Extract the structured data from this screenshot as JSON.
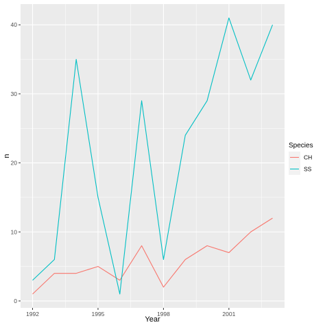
{
  "chart_data": {
    "type": "line",
    "xlabel": "Year",
    "ylabel": "n",
    "x_ticks": [
      1992,
      1995,
      1998,
      2001
    ],
    "y_ticks": [
      0,
      10,
      20,
      30,
      40
    ],
    "xlim": [
      1991.45,
      2003.55
    ],
    "ylim": [
      -1.0,
      43.0
    ],
    "grid": true,
    "legend": {
      "title": "Species",
      "placement": "right"
    },
    "series": [
      {
        "name": "CH",
        "color": "#F8766D",
        "x": [
          1992,
          1993,
          1994,
          1995,
          1996,
          1997,
          1998,
          1999,
          2000,
          2001,
          2002,
          2003
        ],
        "values": [
          1,
          4,
          4,
          5,
          3,
          8,
          2,
          6,
          8,
          7,
          10,
          12
        ]
      },
      {
        "name": "SS",
        "color": "#00BFC4",
        "x": [
          1992,
          1993,
          1994,
          1995,
          1996,
          1997,
          1998,
          1999,
          2000,
          2001,
          2002,
          2003
        ],
        "values": [
          3,
          6,
          35,
          15,
          1,
          29,
          6,
          24,
          29,
          41,
          32,
          40
        ]
      }
    ]
  }
}
